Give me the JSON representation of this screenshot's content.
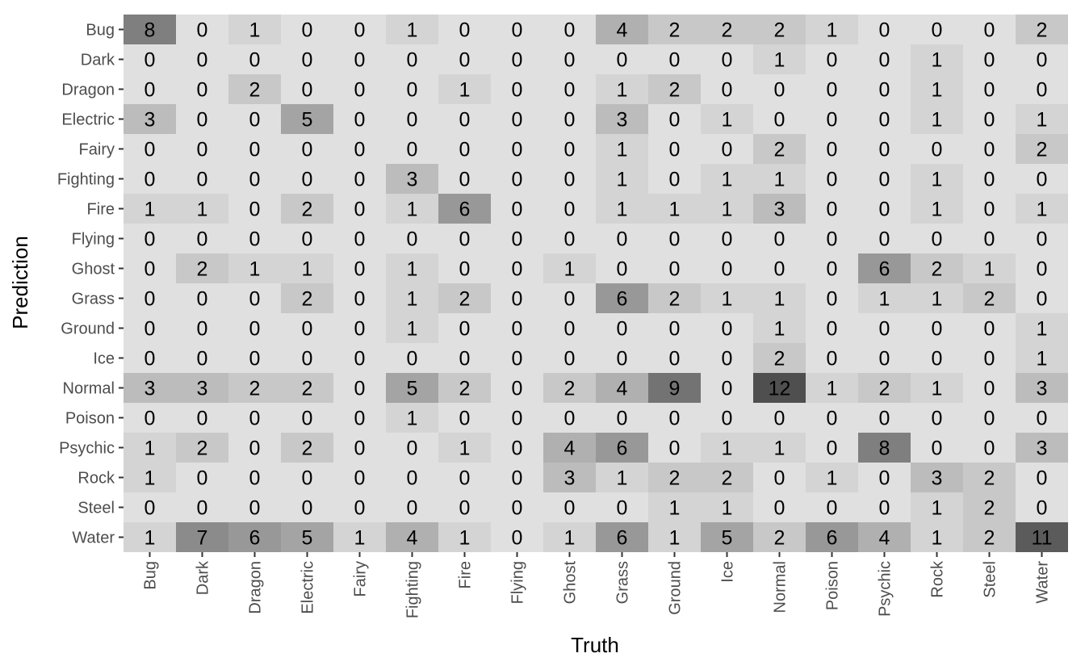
{
  "chart_data": {
    "type": "heatmap",
    "title": "",
    "xlabel": "Truth",
    "ylabel": "Prediction",
    "x_categories": [
      "Bug",
      "Dark",
      "Dragon",
      "Electric",
      "Fairy",
      "Fighting",
      "Fire",
      "Flying",
      "Ghost",
      "Grass",
      "Ground",
      "Ice",
      "Normal",
      "Poison",
      "Psychic",
      "Rock",
      "Steel",
      "Water"
    ],
    "y_categories": [
      "Bug",
      "Dark",
      "Dragon",
      "Electric",
      "Fairy",
      "Fighting",
      "Fire",
      "Flying",
      "Ghost",
      "Grass",
      "Ground",
      "Ice",
      "Normal",
      "Poison",
      "Psychic",
      "Rock",
      "Steel",
      "Water"
    ],
    "values": [
      [
        8,
        0,
        1,
        0,
        0,
        1,
        0,
        0,
        0,
        4,
        2,
        2,
        2,
        1,
        0,
        0,
        0,
        2
      ],
      [
        0,
        0,
        0,
        0,
        0,
        0,
        0,
        0,
        0,
        0,
        0,
        0,
        1,
        0,
        0,
        1,
        0,
        0
      ],
      [
        0,
        0,
        2,
        0,
        0,
        0,
        1,
        0,
        0,
        1,
        2,
        0,
        0,
        0,
        0,
        1,
        0,
        0
      ],
      [
        3,
        0,
        0,
        5,
        0,
        0,
        0,
        0,
        0,
        3,
        0,
        1,
        0,
        0,
        0,
        1,
        0,
        1
      ],
      [
        0,
        0,
        0,
        0,
        0,
        0,
        0,
        0,
        0,
        1,
        0,
        0,
        2,
        0,
        0,
        0,
        0,
        2
      ],
      [
        0,
        0,
        0,
        0,
        0,
        3,
        0,
        0,
        0,
        1,
        0,
        1,
        1,
        0,
        0,
        1,
        0,
        0
      ],
      [
        1,
        1,
        0,
        2,
        0,
        1,
        6,
        0,
        0,
        1,
        1,
        1,
        3,
        0,
        0,
        1,
        0,
        1
      ],
      [
        0,
        0,
        0,
        0,
        0,
        0,
        0,
        0,
        0,
        0,
        0,
        0,
        0,
        0,
        0,
        0,
        0,
        0
      ],
      [
        0,
        2,
        1,
        1,
        0,
        1,
        0,
        0,
        1,
        0,
        0,
        0,
        0,
        0,
        6,
        2,
        1,
        0
      ],
      [
        0,
        0,
        0,
        2,
        0,
        1,
        2,
        0,
        0,
        6,
        2,
        1,
        1,
        0,
        1,
        1,
        2,
        0
      ],
      [
        0,
        0,
        0,
        0,
        0,
        1,
        0,
        0,
        0,
        0,
        0,
        0,
        1,
        0,
        0,
        0,
        0,
        1
      ],
      [
        0,
        0,
        0,
        0,
        0,
        0,
        0,
        0,
        0,
        0,
        0,
        0,
        2,
        0,
        0,
        0,
        0,
        1
      ],
      [
        3,
        3,
        2,
        2,
        0,
        5,
        2,
        0,
        2,
        4,
        9,
        0,
        12,
        1,
        2,
        1,
        0,
        3
      ],
      [
        0,
        0,
        0,
        0,
        0,
        1,
        0,
        0,
        0,
        0,
        0,
        0,
        0,
        0,
        0,
        0,
        0,
        0
      ],
      [
        1,
        2,
        0,
        2,
        0,
        0,
        1,
        0,
        4,
        6,
        0,
        1,
        1,
        0,
        8,
        0,
        0,
        3
      ],
      [
        1,
        0,
        0,
        0,
        0,
        0,
        0,
        0,
        3,
        1,
        2,
        2,
        0,
        1,
        0,
        3,
        2,
        0
      ],
      [
        0,
        0,
        0,
        0,
        0,
        0,
        0,
        0,
        0,
        0,
        1,
        1,
        0,
        0,
        0,
        1,
        2,
        0
      ],
      [
        1,
        7,
        6,
        5,
        1,
        4,
        1,
        0,
        1,
        6,
        1,
        5,
        2,
        6,
        4,
        1,
        2,
        11
      ]
    ],
    "value_range": [
      0,
      12
    ],
    "color_low": "#e0e0e0",
    "color_high": "#4f4f4f",
    "grid": false,
    "legend": "none"
  }
}
